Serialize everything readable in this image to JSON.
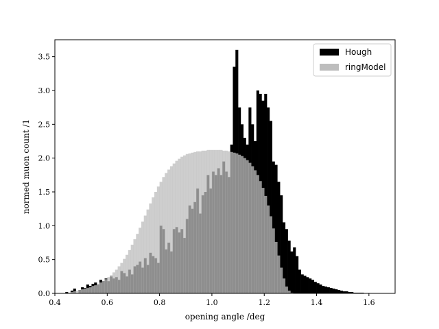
{
  "chart_data": {
    "type": "bar",
    "xlabel": "opening angle /deg",
    "ylabel": "normed muon count /1",
    "xlim": [
      0.4,
      1.7
    ],
    "ylim": [
      0.0,
      3.75
    ],
    "xticks": [
      0.4,
      0.6,
      0.8,
      1.0,
      1.2,
      1.4,
      1.6
    ],
    "xtick_labels": [
      "0.4",
      "0.6",
      "0.8",
      "1.0",
      "1.2",
      "1.4",
      "1.6"
    ],
    "yticks": [
      0.0,
      0.5,
      1.0,
      1.5,
      2.0,
      2.5,
      3.0,
      3.5
    ],
    "ytick_labels": [
      "0.0",
      "0.5",
      "1.0",
      "1.5",
      "2.0",
      "2.5",
      "3.0",
      "3.5"
    ],
    "legend_position": "top-right",
    "bin_width": 0.01,
    "series": [
      {
        "name": "Hough",
        "color": "#000000",
        "points": [
          [
            0.44,
            0.02
          ],
          [
            0.46,
            0.04
          ],
          [
            0.47,
            0.07
          ],
          [
            0.49,
            0.05
          ],
          [
            0.5,
            0.09
          ],
          [
            0.51,
            0.08
          ],
          [
            0.52,
            0.13
          ],
          [
            0.53,
            0.11
          ],
          [
            0.54,
            0.14
          ],
          [
            0.55,
            0.16
          ],
          [
            0.56,
            0.13
          ],
          [
            0.57,
            0.2
          ],
          [
            0.58,
            0.18
          ],
          [
            0.59,
            0.22
          ],
          [
            0.6,
            0.18
          ],
          [
            0.61,
            0.25
          ],
          [
            0.62,
            0.22
          ],
          [
            0.63,
            0.24
          ],
          [
            0.64,
            0.2
          ],
          [
            0.65,
            0.33
          ],
          [
            0.66,
            0.3
          ],
          [
            0.67,
            0.25
          ],
          [
            0.68,
            0.35
          ],
          [
            0.69,
            0.28
          ],
          [
            0.7,
            0.4
          ],
          [
            0.71,
            0.42
          ],
          [
            0.72,
            0.47
          ],
          [
            0.73,
            0.38
          ],
          [
            0.74,
            0.52
          ],
          [
            0.75,
            0.42
          ],
          [
            0.76,
            0.6
          ],
          [
            0.77,
            0.55
          ],
          [
            0.78,
            0.52
          ],
          [
            0.79,
            0.45
          ],
          [
            0.8,
            1.0
          ],
          [
            0.81,
            0.95
          ],
          [
            0.82,
            0.65
          ],
          [
            0.83,
            0.75
          ],
          [
            0.84,
            0.62
          ],
          [
            0.85,
            0.95
          ],
          [
            0.86,
            0.98
          ],
          [
            0.87,
            0.9
          ],
          [
            0.88,
            0.95
          ],
          [
            0.89,
            0.82
          ],
          [
            0.9,
            1.1
          ],
          [
            0.91,
            1.3
          ],
          [
            0.92,
            1.25
          ],
          [
            0.93,
            1.35
          ],
          [
            0.94,
            1.55
          ],
          [
            0.95,
            1.18
          ],
          [
            0.96,
            1.45
          ],
          [
            0.97,
            1.5
          ],
          [
            0.98,
            1.75
          ],
          [
            0.99,
            1.55
          ],
          [
            1.0,
            1.8
          ],
          [
            1.01,
            1.75
          ],
          [
            1.02,
            1.85
          ],
          [
            1.03,
            1.75
          ],
          [
            1.04,
            1.95
          ],
          [
            1.05,
            1.8
          ],
          [
            1.06,
            1.72
          ],
          [
            1.07,
            2.2
          ],
          [
            1.08,
            3.35
          ],
          [
            1.09,
            3.6
          ],
          [
            1.1,
            2.75
          ],
          [
            1.11,
            2.5
          ],
          [
            1.12,
            2.3
          ],
          [
            1.13,
            2.2
          ],
          [
            1.14,
            2.75
          ],
          [
            1.15,
            2.5
          ],
          [
            1.16,
            2.25
          ],
          [
            1.17,
            3.0
          ],
          [
            1.18,
            2.95
          ],
          [
            1.19,
            2.85
          ],
          [
            1.2,
            2.95
          ],
          [
            1.21,
            2.75
          ],
          [
            1.22,
            2.55
          ],
          [
            1.23,
            1.95
          ],
          [
            1.24,
            1.9
          ],
          [
            1.25,
            1.65
          ],
          [
            1.26,
            1.45
          ],
          [
            1.27,
            1.05
          ],
          [
            1.28,
            0.95
          ],
          [
            1.29,
            0.78
          ],
          [
            1.3,
            0.62
          ],
          [
            1.31,
            0.68
          ],
          [
            1.32,
            0.55
          ],
          [
            1.33,
            0.35
          ],
          [
            1.34,
            0.28
          ],
          [
            1.35,
            0.26
          ],
          [
            1.36,
            0.24
          ],
          [
            1.37,
            0.22
          ],
          [
            1.38,
            0.2
          ],
          [
            1.39,
            0.17
          ],
          [
            1.4,
            0.15
          ],
          [
            1.41,
            0.13
          ],
          [
            1.42,
            0.11
          ],
          [
            1.43,
            0.1
          ],
          [
            1.44,
            0.09
          ],
          [
            1.45,
            0.08
          ],
          [
            1.46,
            0.07
          ],
          [
            1.47,
            0.06
          ],
          [
            1.48,
            0.05
          ],
          [
            1.49,
            0.04
          ],
          [
            1.5,
            0.03
          ],
          [
            1.51,
            0.03
          ],
          [
            1.52,
            0.02
          ],
          [
            1.53,
            0.02
          ],
          [
            1.54,
            0.01
          ],
          [
            1.55,
            0.01
          ],
          [
            1.56,
            0.01
          ],
          [
            1.57,
            0.01
          ]
        ]
      },
      {
        "name": "ringModel",
        "color": "#bdbdbd",
        "points": [
          [
            0.45,
            0.01
          ],
          [
            0.46,
            0.02
          ],
          [
            0.47,
            0.03
          ],
          [
            0.48,
            0.04
          ],
          [
            0.49,
            0.05
          ],
          [
            0.5,
            0.06
          ],
          [
            0.51,
            0.07
          ],
          [
            0.52,
            0.08
          ],
          [
            0.53,
            0.09
          ],
          [
            0.54,
            0.11
          ],
          [
            0.55,
            0.12
          ],
          [
            0.56,
            0.14
          ],
          [
            0.57,
            0.16
          ],
          [
            0.58,
            0.18
          ],
          [
            0.59,
            0.21
          ],
          [
            0.6,
            0.24
          ],
          [
            0.61,
            0.27
          ],
          [
            0.62,
            0.31
          ],
          [
            0.63,
            0.35
          ],
          [
            0.64,
            0.4
          ],
          [
            0.65,
            0.45
          ],
          [
            0.66,
            0.51
          ],
          [
            0.67,
            0.57
          ],
          [
            0.68,
            0.64
          ],
          [
            0.69,
            0.72
          ],
          [
            0.7,
            0.8
          ],
          [
            0.71,
            0.88
          ],
          [
            0.72,
            0.97
          ],
          [
            0.73,
            1.06
          ],
          [
            0.74,
            1.15
          ],
          [
            0.75,
            1.24
          ],
          [
            0.76,
            1.33
          ],
          [
            0.77,
            1.42
          ],
          [
            0.78,
            1.5
          ],
          [
            0.79,
            1.58
          ],
          [
            0.8,
            1.65
          ],
          [
            0.81,
            1.72
          ],
          [
            0.82,
            1.78
          ],
          [
            0.83,
            1.83
          ],
          [
            0.84,
            1.88
          ],
          [
            0.85,
            1.92
          ],
          [
            0.86,
            1.96
          ],
          [
            0.87,
            1.99
          ],
          [
            0.88,
            2.02
          ],
          [
            0.89,
            2.04
          ],
          [
            0.9,
            2.06
          ],
          [
            0.91,
            2.07
          ],
          [
            0.92,
            2.08
          ],
          [
            0.93,
            2.09
          ],
          [
            0.94,
            2.1
          ],
          [
            0.95,
            2.1
          ],
          [
            0.96,
            2.11
          ],
          [
            0.97,
            2.11
          ],
          [
            0.98,
            2.12
          ],
          [
            0.99,
            2.12
          ],
          [
            1.0,
            2.12
          ],
          [
            1.01,
            2.12
          ],
          [
            1.02,
            2.12
          ],
          [
            1.03,
            2.12
          ],
          [
            1.04,
            2.11
          ],
          [
            1.05,
            2.11
          ],
          [
            1.06,
            2.1
          ],
          [
            1.07,
            2.09
          ],
          [
            1.08,
            2.08
          ],
          [
            1.09,
            2.07
          ],
          [
            1.1,
            2.05
          ],
          [
            1.11,
            2.03
          ],
          [
            1.12,
            2.0
          ],
          [
            1.13,
            1.97
          ],
          [
            1.14,
            1.93
          ],
          [
            1.15,
            1.88
          ],
          [
            1.16,
            1.82
          ],
          [
            1.17,
            1.75
          ],
          [
            1.18,
            1.66
          ],
          [
            1.19,
            1.56
          ],
          [
            1.2,
            1.44
          ],
          [
            1.21,
            1.3
          ],
          [
            1.22,
            1.14
          ],
          [
            1.23,
            0.96
          ],
          [
            1.24,
            0.76
          ],
          [
            1.25,
            0.56
          ],
          [
            1.26,
            0.38
          ],
          [
            1.27,
            0.22
          ],
          [
            1.28,
            0.1
          ],
          [
            1.29,
            0.04
          ],
          [
            1.3,
            0.01
          ]
        ]
      }
    ]
  }
}
